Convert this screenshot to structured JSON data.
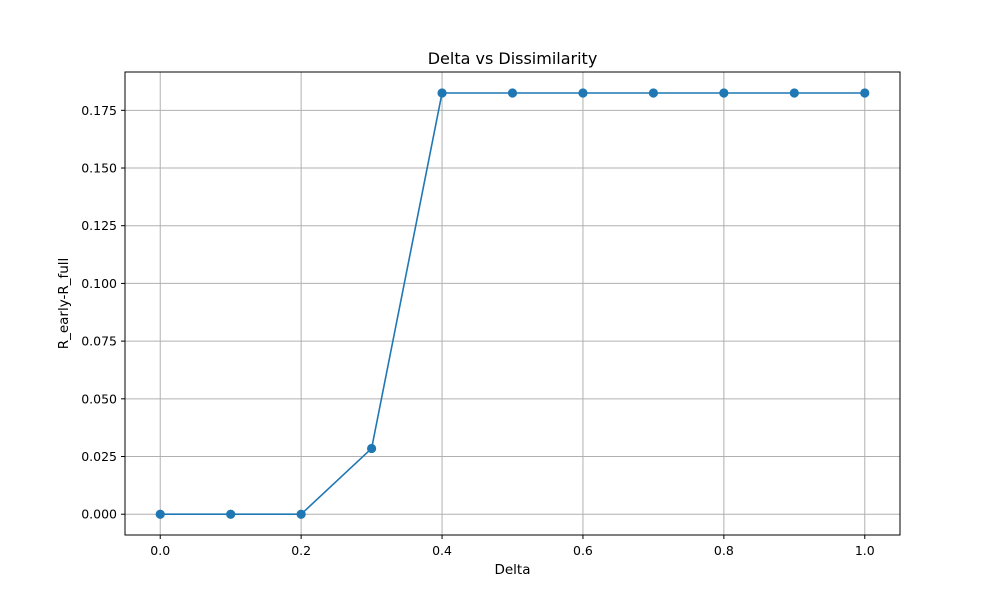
{
  "chart_data": {
    "type": "line",
    "title": "Delta vs Dissimilarity",
    "xlabel": "Delta",
    "ylabel": "R_early-R_full",
    "x": [
      0.0,
      0.1,
      0.2,
      0.3,
      0.4,
      0.5,
      0.6,
      0.7,
      0.8,
      0.9,
      1.0
    ],
    "series": [
      {
        "values": [
          0.0,
          0.0,
          0.0,
          0.0285,
          0.1825,
          0.1825,
          0.1825,
          0.1825,
          0.1825,
          0.1825,
          0.1825
        ],
        "color": "#1f77b4",
        "marker": "circle"
      }
    ],
    "xlim": [
      -0.05,
      1.05
    ],
    "ylim": [
      -0.009,
      0.1916
    ],
    "x_ticks": [
      0.0,
      0.2,
      0.4,
      0.6,
      0.8,
      1.0
    ],
    "x_tick_labels": [
      "0.0",
      "0.2",
      "0.4",
      "0.6",
      "0.8",
      "1.0"
    ],
    "y_ticks": [
      0.0,
      0.025,
      0.05,
      0.075,
      0.1,
      0.125,
      0.15,
      0.175
    ],
    "y_tick_labels": [
      "0.000",
      "0.025",
      "0.050",
      "0.075",
      "0.100",
      "0.125",
      "0.150",
      "0.175"
    ],
    "grid": true,
    "grid_color": "#b0b0b0",
    "legend": "none"
  }
}
